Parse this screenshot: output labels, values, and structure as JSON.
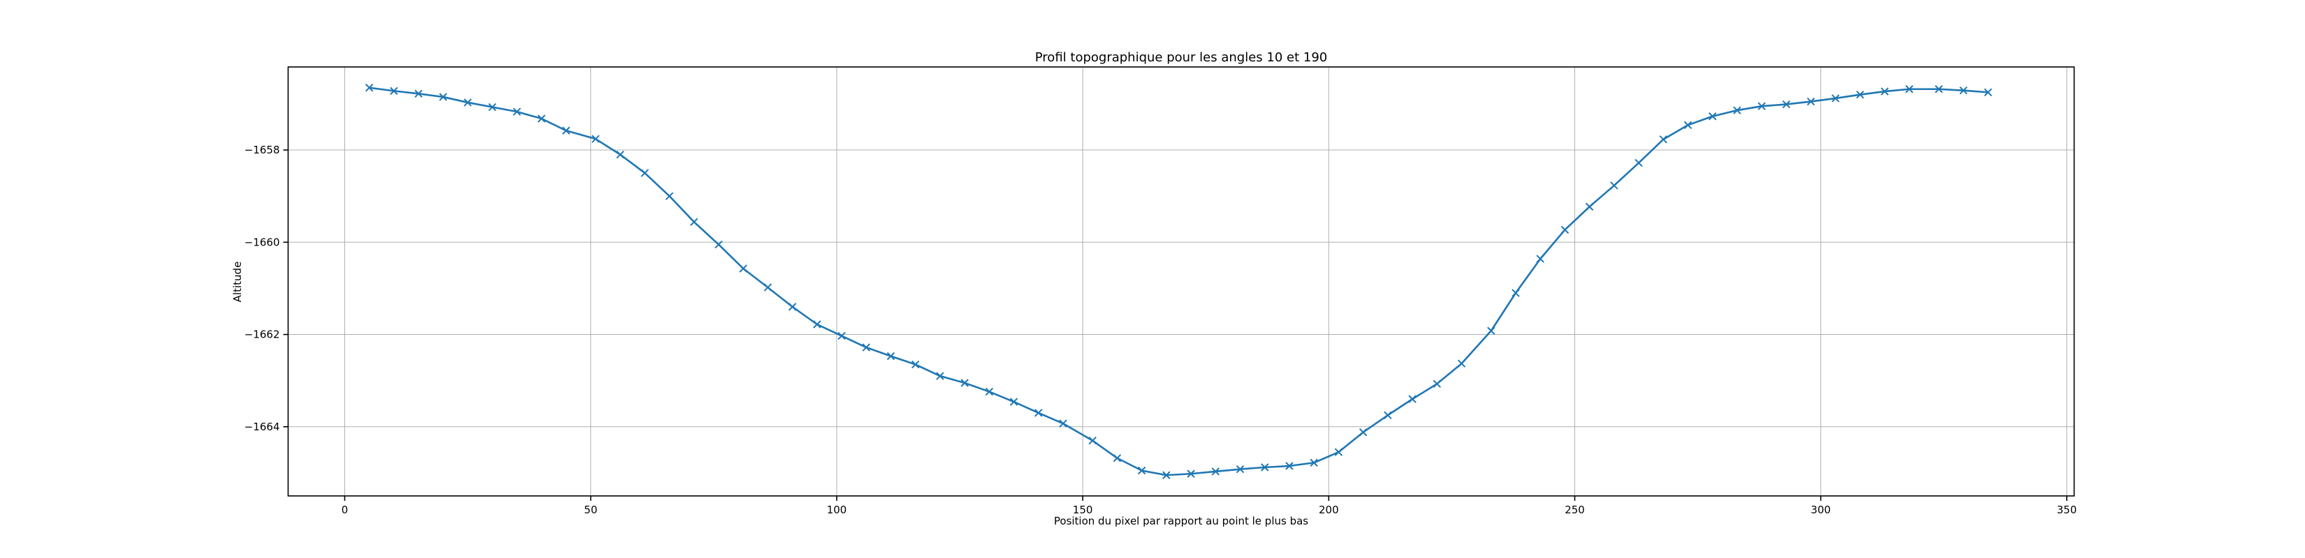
{
  "chart_data": {
    "type": "line",
    "title": "Profil topographique pour les angles 10 et 190",
    "xlabel": "Position du pixel par rapport au point le plus bas",
    "ylabel": "Altitude",
    "xlim": [
      -11.5,
      351.5
    ],
    "ylim": [
      -1665.5,
      -1656.2
    ],
    "xticks": [
      0,
      50,
      100,
      150,
      200,
      250,
      300,
      350
    ],
    "xtick_labels": [
      "0",
      "50",
      "100",
      "150",
      "200",
      "250",
      "300",
      "350"
    ],
    "yticks": [
      -1658,
      -1660,
      -1662,
      -1664
    ],
    "ytick_labels": [
      "−1658",
      "−1660",
      "−1662",
      "−1664"
    ],
    "grid": true,
    "marker": "x",
    "color": "#1f77b4",
    "series": [
      {
        "x": [
          5,
          10,
          15,
          20,
          25,
          30,
          35,
          40,
          45,
          51,
          56,
          61,
          66,
          71,
          76,
          81,
          86,
          91,
          96,
          101,
          106,
          111,
          116,
          121,
          126,
          131,
          136,
          141,
          146,
          152,
          157,
          162,
          167,
          172,
          177,
          182,
          187,
          192,
          197,
          202,
          207,
          212,
          217,
          222,
          227,
          233,
          238,
          243,
          248,
          253,
          258,
          263,
          268,
          273,
          278,
          283,
          288,
          293,
          298,
          303,
          308,
          313,
          318,
          324,
          329,
          334
        ],
        "y": [
          -1656.65,
          -1656.72,
          -1656.78,
          -1656.85,
          -1656.97,
          -1657.07,
          -1657.17,
          -1657.32,
          -1657.58,
          -1657.76,
          -1658.1,
          -1658.5,
          -1659.0,
          -1659.56,
          -1660.05,
          -1660.57,
          -1660.98,
          -1661.4,
          -1661.78,
          -1662.03,
          -1662.28,
          -1662.47,
          -1662.65,
          -1662.9,
          -1663.05,
          -1663.24,
          -1663.46,
          -1663.7,
          -1663.93,
          -1664.3,
          -1664.68,
          -1664.95,
          -1665.05,
          -1665.02,
          -1664.97,
          -1664.92,
          -1664.88,
          -1664.85,
          -1664.78,
          -1664.55,
          -1664.12,
          -1663.75,
          -1663.4,
          -1663.07,
          -1662.63,
          -1661.92,
          -1661.1,
          -1660.36,
          -1659.73,
          -1659.23,
          -1658.77,
          -1658.28,
          -1657.77,
          -1657.46,
          -1657.27,
          -1657.14,
          -1657.05,
          -1657.01,
          -1656.95,
          -1656.88,
          -1656.8,
          -1656.73,
          -1656.68,
          -1656.68,
          -1656.71,
          -1656.75
        ]
      }
    ]
  }
}
